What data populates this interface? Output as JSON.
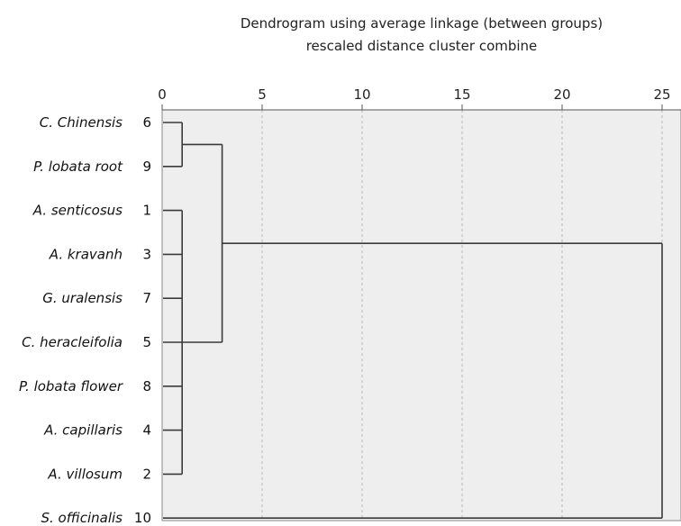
{
  "chart_data": {
    "type": "dendrogram",
    "title": "Dendrogram using average linkage (between groups)",
    "subtitle": "rescaled distance cluster combine",
    "x_ticks": [
      0,
      5,
      10,
      15,
      20,
      25
    ],
    "xlim": [
      0,
      25
    ],
    "grid": "vertical dashed",
    "colors": {
      "plot_background": "#eeeeee",
      "link": "#3a3a3a",
      "grid": "#b8b8b8"
    },
    "leaves": [
      {
        "name": "C. Chinensis",
        "id": "6"
      },
      {
        "name": "P. lobata root",
        "id": "9"
      },
      {
        "name": "A. senticosus",
        "id": "1"
      },
      {
        "name": "A. kravanh",
        "id": "3"
      },
      {
        "name": "G. uralensis",
        "id": "7"
      },
      {
        "name": "C. heracleifolia",
        "id": "5"
      },
      {
        "name": "P. lobata flower",
        "id": "8"
      },
      {
        "name": "A. capillaris",
        "id": "4"
      },
      {
        "name": "A. villosum",
        "id": "2"
      },
      {
        "name": "S. officinalis",
        "id": "10"
      }
    ],
    "merges": [
      {
        "members": [
          0,
          1
        ],
        "height": 1
      },
      {
        "members": [
          2,
          3,
          4,
          5,
          6,
          7,
          8
        ],
        "height": 1
      },
      {
        "members": [
          0,
          1,
          2,
          3,
          4,
          5,
          6,
          7,
          8
        ],
        "height": 3
      },
      {
        "members": [
          0,
          1,
          2,
          3,
          4,
          5,
          6,
          7,
          8,
          9
        ],
        "height": 25
      }
    ]
  }
}
